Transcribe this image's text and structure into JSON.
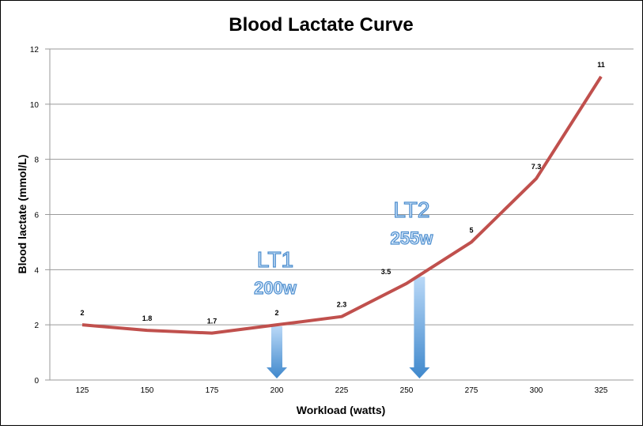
{
  "chart_data": {
    "type": "line",
    "title": "Blood Lactate Curve",
    "xlabel": "Workload (watts)",
    "ylabel": "Blood lactate (mmol/L)",
    "categories": [
      "125",
      "150",
      "175",
      "200",
      "225",
      "250",
      "275",
      "300",
      "325"
    ],
    "values": [
      2,
      1.8,
      1.7,
      2,
      2.3,
      3.5,
      5,
      7.3,
      11
    ],
    "data_labels": [
      "2",
      "1.8",
      "1.7",
      "2",
      "2.3",
      "3.5",
      "5",
      "7.3",
      "11"
    ],
    "ylim": [
      0,
      12
    ],
    "yticks": [
      "0",
      "2",
      "4",
      "6",
      "8",
      "10",
      "12"
    ],
    "grid": true,
    "legend": "none",
    "line_color": "#c0504d",
    "annotations": [
      {
        "label": "LT1",
        "sublabel": "200w",
        "workload": 200,
        "color": "#4f8fcf"
      },
      {
        "label": "LT2",
        "sublabel": "255w",
        "workload": 255,
        "color": "#4f8fcf"
      }
    ]
  }
}
